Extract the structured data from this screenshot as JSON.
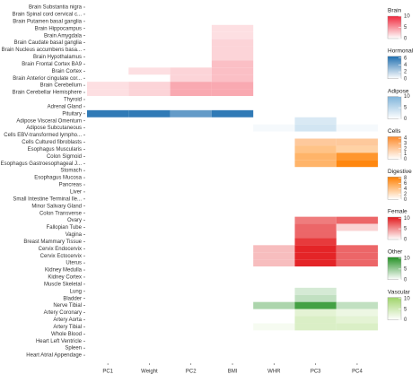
{
  "chart_data": {
    "type": "heatmap",
    "columns": [
      "PC1",
      "Weight",
      "PC2",
      "BMI",
      "WHR",
      "PC3",
      "PC4"
    ],
    "rows": [
      "Brain Substantia nigra",
      "Brain Spinal cord cervical c...",
      "Brain Putamen basal ganglia",
      "Brain Hippocampus",
      "Brain Amygdala",
      "Brain Caudate basal ganglia",
      "Brain Nucleus accumbens basa...",
      "Brain Hypothalamus",
      "Brain Frontal Cortex BA9",
      "Brain Cortex",
      "Brain Anterior cingulate cor...",
      "Brain Cerebellum",
      "Brain Cerebellar Hemisphere",
      "Thyroid",
      "Adrenal Gland",
      "Pituitary",
      "Adipose Visceral Omentum",
      "Adipose Subcutaneous",
      "Cells EBV-transformed lympho...",
      "Cells Cultured fibroblasts",
      "Esophagus Muscularis",
      "Colon Sigmoid",
      "Esophagus Gastroesophageal J...",
      "Stomach",
      "Esophagus Mucosa",
      "Pancreas",
      "Liver",
      "Small Intestine Terminal Ile...",
      "Minor Salivary Gland",
      "Colon Transverse",
      "Ovary",
      "Fallopian Tube",
      "Vagina",
      "Breast Mammary Tissue",
      "Cervix Endocervix",
      "Cervix Ectocervix",
      "Uterus",
      "Kidney Medulla",
      "Kidney Cortex",
      "Muscle Skeletal",
      "Lung",
      "Bladder",
      "Nerve Tibial",
      "Artery Coronary",
      "Artery Aorta",
      "Artery Tibial",
      "Whole Blood",
      "Heart Left Ventricle",
      "Spleen",
      "Heart Atrial Appendage"
    ],
    "row_group": [
      0,
      0,
      0,
      0,
      0,
      0,
      0,
      0,
      0,
      0,
      0,
      0,
      0,
      1,
      1,
      1,
      2,
      2,
      3,
      3,
      4,
      4,
      4,
      4,
      4,
      4,
      4,
      4,
      4,
      4,
      5,
      5,
      5,
      5,
      5,
      5,
      5,
      6,
      6,
      6,
      6,
      6,
      6,
      7,
      7,
      7,
      6,
      6,
      6,
      6
    ],
    "groups": [
      {
        "name": "Brain",
        "color": "#f0283c",
        "lim": [
          0,
          10
        ],
        "ticks": [
          0,
          5,
          10
        ]
      },
      {
        "name": "Hormonal",
        "color": "#1f6fb0",
        "lim": [
          0,
          6.5
        ],
        "ticks": [
          0,
          2,
          4,
          6
        ]
      },
      {
        "name": "Adipose",
        "color": "#7fb4da",
        "lim": [
          0,
          10
        ],
        "ticks": [
          0,
          5,
          10
        ]
      },
      {
        "name": "Cells",
        "color": "#fd8a2a",
        "lim": [
          0,
          4.3
        ],
        "ticks": [
          0,
          1,
          2,
          3,
          4
        ]
      },
      {
        "name": "Digestive",
        "color": "#ff7f00",
        "lim": [
          0,
          8.5
        ],
        "ticks": [
          0,
          2,
          4,
          6,
          8
        ]
      },
      {
        "name": "Female",
        "color": "#e3191c",
        "lim": [
          0,
          10.5
        ],
        "ticks": [
          0,
          5,
          10
        ]
      },
      {
        "name": "Other",
        "color": "#259125",
        "lim": [
          0,
          10.5
        ],
        "ticks": [
          0,
          5,
          10
        ]
      },
      {
        "name": "Vascular",
        "color": "#9fd46a",
        "lim": [
          0,
          10.5
        ],
        "ticks": [
          0,
          5,
          10
        ]
      }
    ],
    "values": [
      [
        null,
        null,
        null,
        null,
        null,
        null,
        null
      ],
      [
        null,
        null,
        null,
        null,
        null,
        null,
        null
      ],
      [
        null,
        null,
        null,
        null,
        null,
        null,
        null
      ],
      [
        null,
        null,
        null,
        1.5,
        null,
        null,
        null
      ],
      [
        null,
        null,
        null,
        1.5,
        null,
        null,
        null
      ],
      [
        null,
        null,
        null,
        2,
        null,
        null,
        null
      ],
      [
        null,
        null,
        null,
        2,
        null,
        null,
        null
      ],
      [
        null,
        null,
        null,
        2,
        null,
        null,
        null
      ],
      [
        null,
        null,
        null,
        3,
        null,
        null,
        null
      ],
      [
        null,
        1.5,
        2,
        3,
        null,
        null,
        null
      ],
      [
        null,
        null,
        2,
        3,
        null,
        null,
        null
      ],
      [
        1.5,
        2,
        4,
        4,
        null,
        null,
        null
      ],
      [
        1.5,
        2,
        4,
        4,
        null,
        null,
        null
      ],
      [
        null,
        null,
        null,
        null,
        null,
        null,
        null
      ],
      [
        null,
        null,
        null,
        null,
        null,
        null,
        null
      ],
      [
        6,
        6,
        4.5,
        6,
        null,
        null,
        null
      ],
      [
        null,
        null,
        null,
        null,
        null,
        3,
        null
      ],
      [
        null,
        null,
        null,
        null,
        0.8,
        3.5,
        0.8
      ],
      [
        null,
        null,
        null,
        null,
        null,
        null,
        null
      ],
      [
        null,
        null,
        null,
        null,
        null,
        2,
        2
      ],
      [
        null,
        null,
        null,
        null,
        null,
        4,
        3
      ],
      [
        null,
        null,
        null,
        null,
        null,
        5,
        7
      ],
      [
        null,
        null,
        null,
        null,
        null,
        5,
        8
      ],
      [
        null,
        null,
        null,
        null,
        null,
        null,
        null
      ],
      [
        null,
        null,
        null,
        null,
        null,
        null,
        null
      ],
      [
        null,
        null,
        null,
        null,
        null,
        null,
        null
      ],
      [
        null,
        null,
        null,
        null,
        null,
        null,
        null
      ],
      [
        null,
        null,
        null,
        null,
        null,
        null,
        null
      ],
      [
        null,
        null,
        null,
        null,
        null,
        null,
        null
      ],
      [
        null,
        null,
        null,
        null,
        null,
        null,
        null
      ],
      [
        null,
        null,
        null,
        null,
        null,
        6,
        7
      ],
      [
        null,
        null,
        null,
        null,
        null,
        7,
        2
      ],
      [
        null,
        null,
        null,
        null,
        null,
        7,
        null
      ],
      [
        null,
        null,
        null,
        null,
        null,
        9,
        null
      ],
      [
        null,
        null,
        null,
        null,
        3,
        10,
        7
      ],
      [
        null,
        null,
        null,
        null,
        3,
        10,
        7
      ],
      [
        null,
        null,
        null,
        null,
        3,
        10,
        7
      ],
      [
        null,
        null,
        null,
        null,
        null,
        null,
        null
      ],
      [
        null,
        null,
        null,
        null,
        null,
        null,
        null
      ],
      [
        null,
        null,
        null,
        null,
        null,
        null,
        null
      ],
      [
        null,
        null,
        null,
        null,
        null,
        2,
        null
      ],
      [
        null,
        null,
        null,
        null,
        null,
        3,
        null
      ],
      [
        null,
        null,
        null,
        null,
        4,
        9,
        3
      ],
      [
        null,
        null,
        null,
        null,
        null,
        3,
        2
      ],
      [
        null,
        null,
        null,
        null,
        null,
        4,
        3
      ],
      [
        null,
        null,
        null,
        null,
        1,
        4,
        4
      ],
      [
        null,
        null,
        null,
        null,
        null,
        null,
        null
      ],
      [
        null,
        null,
        null,
        null,
        null,
        null,
        null
      ],
      [
        null,
        null,
        null,
        null,
        null,
        null,
        null
      ],
      [
        null,
        null,
        null,
        null,
        null,
        null,
        null
      ]
    ]
  }
}
